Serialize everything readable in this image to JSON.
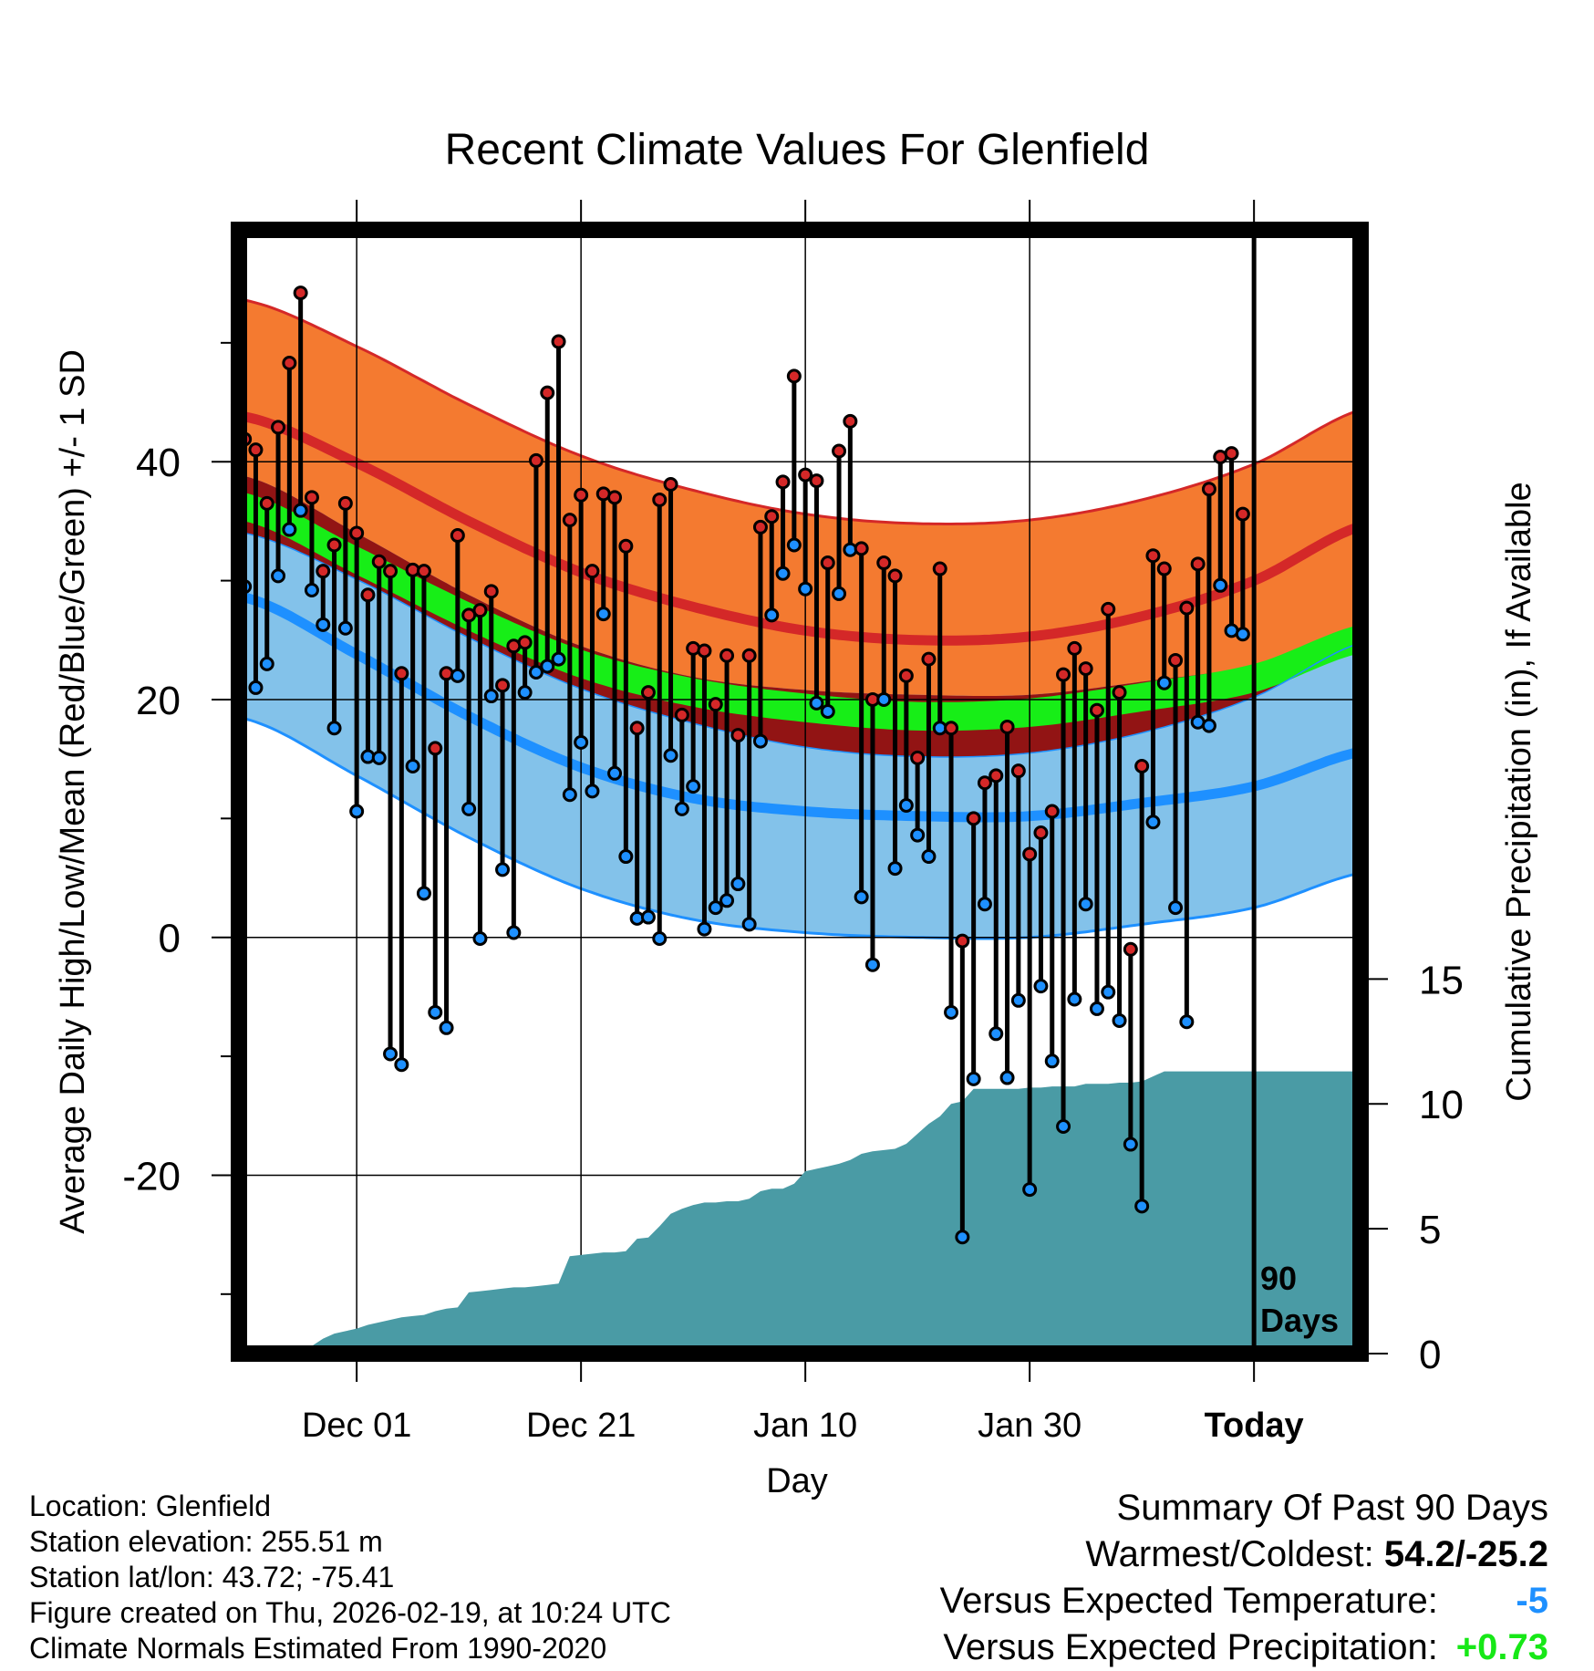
{
  "chart_data": {
    "type": "line",
    "title": "Recent Climate Values For Glenfield",
    "xlabel": "Day",
    "ylabel": "Average Daily High/Low/Mean (Red/Blue/Green) +/- 1 SD",
    "y2label": "Cumulative Precipitation (in), If Available",
    "xlim": [
      -10.5,
      89.5
    ],
    "ylim": [
      -35,
      59.5
    ],
    "y2lim": [
      0,
      45
    ],
    "y_ticks": [
      -20,
      0,
      20,
      40
    ],
    "y_tick_labels": [
      "-20",
      "0",
      "20",
      "40"
    ],
    "y2_ticks": [
      0,
      5,
      10,
      15
    ],
    "y2_tick_labels": [
      "0",
      "5",
      "10",
      "15"
    ],
    "x_ticks": [
      0,
      20,
      40,
      60,
      80
    ],
    "x_tick_labels": [
      "Dec 01",
      "Dec 21",
      "Jan 10",
      "Jan 30",
      "Today"
    ],
    "today_label": "90\nDays",
    "today_index": 80,
    "grid": true,
    "colors": {
      "high_band": "#f47a30",
      "high_edge": "#d42828",
      "high_normal": "#d42828",
      "mean_band": "#921414",
      "mean_normal": "#17ee17",
      "low_band": "#83c2ea",
      "low_edge": "#1e90ff",
      "low_normal": "#1e90ff",
      "precip": "#4a9ba5",
      "high_marker": "#d42828",
      "low_marker": "#1e90ff"
    },
    "normals": {
      "anchors": [
        -10,
        0,
        10,
        20,
        30,
        40,
        50,
        60,
        70,
        80,
        90
      ],
      "high": [
        43.8,
        39.9,
        35.0,
        30.7,
        27.8,
        25.8,
        25.0,
        25.3,
        27.0,
        30.0,
        34.7
      ],
      "high_sd": 9.8,
      "low": [
        28.6,
        23.8,
        18.6,
        14.3,
        11.7,
        10.6,
        10.2,
        10.2,
        11.3,
        12.7,
        15.7
      ],
      "low_sd": 10.2,
      "mean": [
        36.2,
        31.7,
        27.0,
        23.0,
        20.6,
        19.3,
        18.6,
        18.9,
        20.2,
        21.8,
        25.2
      ],
      "mean_sd": 1.2
    },
    "series": [
      {
        "name": "high",
        "values": [
          41.9,
          41.0,
          36.5,
          42.9,
          48.3,
          54.2,
          37.0,
          30.8,
          33.0,
          36.5,
          34.0,
          28.8,
          31.6,
          30.8,
          22.2,
          30.9,
          30.8,
          15.9,
          22.2,
          33.8,
          27.1,
          27.5,
          29.1,
          21.2,
          24.5,
          24.8,
          40.1,
          45.8,
          50.1,
          35.1,
          37.2,
          30.8,
          37.3,
          37.0,
          32.9,
          17.6,
          20.6,
          36.8,
          38.1,
          18.7,
          24.3,
          24.1,
          19.6,
          23.7,
          17.0,
          23.7,
          34.5,
          35.4,
          38.3,
          47.2,
          38.9,
          38.4,
          31.5,
          40.9,
          43.4,
          32.7,
          20.0,
          31.5,
          30.4,
          22.0,
          15.1,
          23.4,
          31.0,
          17.6,
          -0.3,
          10.0,
          13.0,
          13.6,
          17.7,
          14.0,
          7.0,
          8.8,
          10.6,
          22.1,
          24.3,
          22.6,
          19.1,
          27.6,
          20.6,
          -1.0,
          14.4,
          32.1,
          31.0,
          23.3,
          27.7,
          31.4,
          37.7,
          40.4,
          40.7,
          35.6
        ]
      },
      {
        "name": "low",
        "values": [
          29.5,
          21.0,
          23.0,
          30.4,
          34.3,
          35.9,
          29.2,
          26.3,
          17.6,
          26.0,
          10.6,
          15.2,
          15.1,
          -9.8,
          -10.7,
          14.4,
          3.7,
          -6.3,
          -7.6,
          22.0,
          10.8,
          -0.1,
          20.3,
          5.7,
          0.4,
          20.6,
          22.3,
          22.8,
          23.4,
          12.0,
          16.4,
          12.3,
          27.2,
          13.8,
          6.8,
          1.6,
          1.7,
          -0.1,
          15.3,
          10.8,
          12.7,
          0.7,
          2.5,
          3.1,
          4.5,
          1.1,
          16.5,
          27.1,
          30.6,
          33.0,
          29.3,
          19.7,
          19.0,
          28.9,
          32.6,
          3.4,
          -2.3,
          20.0,
          5.8,
          11.1,
          8.6,
          6.8,
          17.6,
          -6.3,
          -25.2,
          -11.9,
          2.8,
          -8.1,
          -11.8,
          -5.3,
          -21.2,
          -4.1,
          -10.4,
          -15.9,
          -5.2,
          2.8,
          -6.0,
          -4.6,
          -7.0,
          -17.4,
          -22.6,
          9.7,
          21.4,
          2.5,
          -7.1,
          18.1,
          17.8,
          29.6,
          25.8,
          25.5
        ]
      },
      {
        "name": "cumulative_precip",
        "values": [
          0,
          0,
          0,
          0,
          0,
          0,
          0.3,
          0.6,
          0.8,
          0.9,
          1.0,
          1.15,
          1.25,
          1.35,
          1.45,
          1.5,
          1.55,
          1.7,
          1.8,
          1.85,
          2.45,
          2.5,
          2.55,
          2.6,
          2.65,
          2.65,
          2.7,
          2.75,
          2.8,
          3.9,
          3.95,
          4.0,
          4.05,
          4.05,
          4.1,
          4.6,
          4.65,
          5.1,
          5.6,
          5.8,
          5.95,
          6.05,
          6.05,
          6.1,
          6.1,
          6.2,
          6.5,
          6.6,
          6.6,
          6.8,
          7.3,
          7.4,
          7.5,
          7.6,
          7.75,
          8.0,
          8.1,
          8.15,
          8.2,
          8.4,
          8.8,
          9.2,
          9.5,
          10.0,
          10.1,
          10.6,
          10.6,
          10.6,
          10.6,
          10.6,
          10.65,
          10.65,
          10.7,
          10.7,
          10.7,
          10.8,
          10.8,
          10.8,
          10.85,
          10.85,
          10.9,
          11.1,
          11.3,
          11.3,
          11.3,
          11.3,
          11.3,
          11.3,
          11.3,
          11.3
        ]
      }
    ]
  },
  "footer": {
    "location": "Location: Glenfield",
    "elevation": "Station elevation: 255.51 m",
    "latlon": "Station lat/lon: 43.72; -75.41",
    "created": "Figure created on Thu, 2026-02-19, at 10:24 UTC",
    "normals_period": "Climate Normals Estimated From 1990-2020"
  },
  "summary": {
    "heading": "Summary Of Past 90 Days",
    "warmest_label": "Warmest/Coldest:",
    "warmest_value": "54.2/-25.2",
    "temp_label": "Versus Expected Temperature:",
    "temp_value": "-5",
    "temp_color": "#1e90ff",
    "precip_label": "Versus Expected Precipitation:",
    "precip_value": "+0.73",
    "precip_color": "#17e817"
  }
}
